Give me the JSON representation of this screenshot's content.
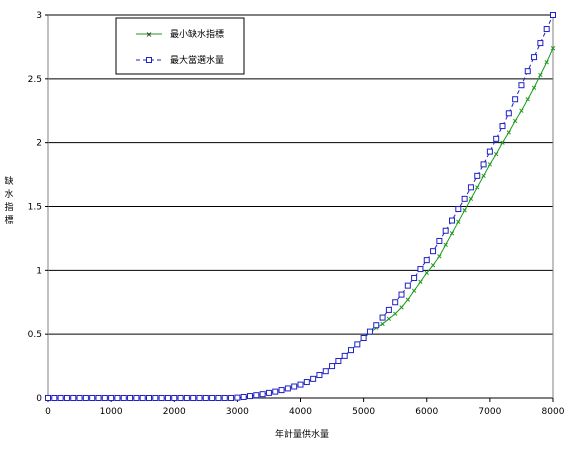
{
  "chart_data": {
    "type": "line",
    "title": "",
    "xlabel": "年計量供水量",
    "ylabel": "缺水指標",
    "xlim": [
      0,
      8000
    ],
    "ylim": [
      0,
      3
    ],
    "x_ticks": [
      "0",
      "1000",
      "2000",
      "3000",
      "4000",
      "5000",
      "6000",
      "7000",
      "8000"
    ],
    "y_ticks": [
      "0",
      "0.5",
      "1",
      "1.5",
      "2",
      "2.5",
      "3"
    ],
    "grid": "horizontal",
    "legend_position": "top-left",
    "x": [
      0,
      100,
      200,
      300,
      400,
      500,
      600,
      700,
      800,
      900,
      1000,
      1100,
      1200,
      1300,
      1400,
      1500,
      1600,
      1700,
      1800,
      1900,
      2000,
      2100,
      2200,
      2300,
      2400,
      2500,
      2600,
      2700,
      2800,
      2900,
      3000,
      3100,
      3200,
      3300,
      3400,
      3500,
      3600,
      3700,
      3800,
      3900,
      4000,
      4100,
      4200,
      4300,
      4400,
      4500,
      4600,
      4700,
      4800,
      4900,
      5000,
      5100,
      5200,
      5300,
      5400,
      5500,
      5600,
      5700,
      5800,
      5900,
      6000,
      6100,
      6200,
      6300,
      6400,
      6500,
      6600,
      6700,
      6800,
      6900,
      7000,
      7100,
      7200,
      7300,
      7400,
      7500,
      7600,
      7700,
      7800,
      7900,
      8000
    ],
    "series": [
      {
        "name": "最小缺水指標",
        "color": "#1a9a1a",
        "style": "solid",
        "marker": "x",
        "values": [
          0,
          0,
          0,
          0,
          0,
          0,
          0,
          0,
          0,
          0,
          0,
          0,
          0,
          0,
          0,
          0,
          0,
          0,
          0,
          0,
          0,
          0,
          0,
          0,
          0,
          0,
          0,
          0,
          0,
          0,
          0.003,
          0.008,
          0.015,
          0.022,
          0.03,
          0.04,
          0.05,
          0.062,
          0.075,
          0.09,
          0.105,
          0.125,
          0.15,
          0.18,
          0.21,
          0.25,
          0.29,
          0.33,
          0.375,
          0.42,
          0.47,
          0.51,
          0.55,
          0.58,
          0.62,
          0.66,
          0.71,
          0.77,
          0.84,
          0.91,
          0.98,
          1.04,
          1.11,
          1.2,
          1.29,
          1.38,
          1.47,
          1.56,
          1.65,
          1.74,
          1.83,
          1.91,
          2.0,
          2.08,
          2.17,
          2.25,
          2.34,
          2.43,
          2.53,
          2.63,
          2.74
        ]
      },
      {
        "name": "最大當選水量",
        "color": "#2020c8",
        "style": "dashed",
        "marker": "square",
        "values": [
          0,
          0,
          0,
          0,
          0,
          0,
          0,
          0,
          0,
          0,
          0,
          0,
          0,
          0,
          0,
          0,
          0,
          0,
          0,
          0,
          0,
          0,
          0,
          0,
          0,
          0,
          0,
          0,
          0,
          0,
          0.003,
          0.008,
          0.015,
          0.022,
          0.03,
          0.04,
          0.05,
          0.062,
          0.075,
          0.09,
          0.105,
          0.125,
          0.15,
          0.18,
          0.21,
          0.25,
          0.29,
          0.33,
          0.375,
          0.42,
          0.47,
          0.52,
          0.57,
          0.63,
          0.69,
          0.75,
          0.81,
          0.88,
          0.94,
          1.01,
          1.08,
          1.15,
          1.23,
          1.31,
          1.39,
          1.48,
          1.56,
          1.65,
          1.74,
          1.83,
          1.93,
          2.03,
          2.13,
          2.23,
          2.34,
          2.45,
          2.56,
          2.67,
          2.78,
          2.89,
          3.0
        ]
      }
    ]
  }
}
